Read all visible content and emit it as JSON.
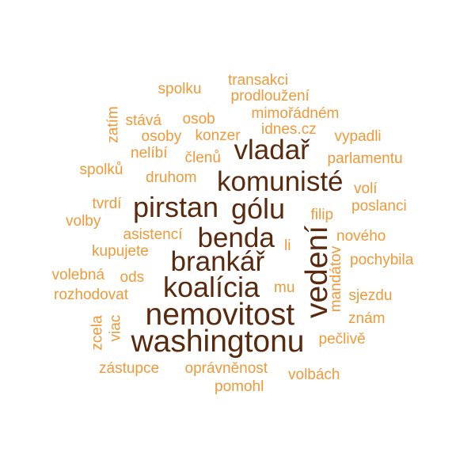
{
  "colors": {
    "primary": "#5a2a0e",
    "accent": "#ef9a3a",
    "background": "#ffffff"
  },
  "words": [
    {
      "text": "washingtonu",
      "tier": "big",
      "size": 39,
      "rotate": 0
    },
    {
      "text": "nemovitost",
      "tier": "big",
      "size": 39,
      "rotate": 0
    },
    {
      "text": "koalícia",
      "tier": "big",
      "size": 36,
      "rotate": 0
    },
    {
      "text": "brankář",
      "tier": "big",
      "size": 35,
      "rotate": 0
    },
    {
      "text": "benda",
      "tier": "big",
      "size": 35,
      "rotate": 0
    },
    {
      "text": "pirstan",
      "tier": "big",
      "size": 36,
      "rotate": 0
    },
    {
      "text": "gólu",
      "tier": "big",
      "size": 36,
      "rotate": 0
    },
    {
      "text": "komunisté",
      "tier": "big",
      "size": 35,
      "rotate": 0
    },
    {
      "text": "vladař",
      "tier": "big",
      "size": 35,
      "rotate": 0
    },
    {
      "text": "vedení",
      "tier": "big",
      "size": 39,
      "rotate": -90
    },
    {
      "text": "spolku",
      "tier": "small",
      "size": 19,
      "rotate": 0
    },
    {
      "text": "transakci",
      "tier": "small",
      "size": 19,
      "rotate": 0
    },
    {
      "text": "prodloužení",
      "tier": "small",
      "size": 19,
      "rotate": 0
    },
    {
      "text": "mimořádném",
      "tier": "small",
      "size": 19,
      "rotate": 0
    },
    {
      "text": "zatím",
      "tier": "small",
      "size": 19,
      "rotate": -90
    },
    {
      "text": "stává",
      "tier": "small",
      "size": 19,
      "rotate": 0
    },
    {
      "text": "osob",
      "tier": "small",
      "size": 19,
      "rotate": 0
    },
    {
      "text": "idnes.cz",
      "tier": "small",
      "size": 19,
      "rotate": 0
    },
    {
      "text": "osoby",
      "tier": "small",
      "size": 19,
      "rotate": 0
    },
    {
      "text": "konzer",
      "tier": "small",
      "size": 19,
      "rotate": 0
    },
    {
      "text": "vypadli",
      "tier": "small",
      "size": 19,
      "rotate": 0
    },
    {
      "text": "nelíbí",
      "tier": "small",
      "size": 19,
      "rotate": 0
    },
    {
      "text": "členů",
      "tier": "small",
      "size": 19,
      "rotate": 0
    },
    {
      "text": "parlamentu",
      "tier": "small",
      "size": 19,
      "rotate": 0
    },
    {
      "text": "spolků",
      "tier": "small",
      "size": 19,
      "rotate": 0
    },
    {
      "text": "druhom",
      "tier": "small",
      "size": 19,
      "rotate": 0
    },
    {
      "text": "volí",
      "tier": "small",
      "size": 19,
      "rotate": 0
    },
    {
      "text": "tvrdí",
      "tier": "small",
      "size": 19,
      "rotate": 0
    },
    {
      "text": "poslanci",
      "tier": "small",
      "size": 19,
      "rotate": 0
    },
    {
      "text": "volby",
      "tier": "small",
      "size": 19,
      "rotate": 0
    },
    {
      "text": "filip",
      "tier": "small",
      "size": 19,
      "rotate": 0
    },
    {
      "text": "asistencí",
      "tier": "small",
      "size": 19,
      "rotate": 0
    },
    {
      "text": "nového",
      "tier": "small",
      "size": 19,
      "rotate": 0
    },
    {
      "text": "kupujete",
      "tier": "small",
      "size": 19,
      "rotate": 0
    },
    {
      "text": "li",
      "tier": "small",
      "size": 19,
      "rotate": 0
    },
    {
      "text": "pochybila",
      "tier": "small",
      "size": 19,
      "rotate": 0
    },
    {
      "text": "volebná",
      "tier": "small",
      "size": 19,
      "rotate": 0
    },
    {
      "text": "ods",
      "tier": "small",
      "size": 19,
      "rotate": 0
    },
    {
      "text": "mandátov",
      "tier": "small",
      "size": 19,
      "rotate": -90
    },
    {
      "text": "rozhodovat",
      "tier": "small",
      "size": 19,
      "rotate": 0
    },
    {
      "text": "mu",
      "tier": "small",
      "size": 19,
      "rotate": 0
    },
    {
      "text": "sjezdu",
      "tier": "small",
      "size": 19,
      "rotate": 0
    },
    {
      "text": "zcela",
      "tier": "small",
      "size": 19,
      "rotate": -90
    },
    {
      "text": "viac",
      "tier": "small",
      "size": 19,
      "rotate": -90
    },
    {
      "text": "znám",
      "tier": "small",
      "size": 19,
      "rotate": 0
    },
    {
      "text": "pečlivě",
      "tier": "small",
      "size": 19,
      "rotate": 0
    },
    {
      "text": "zástupce",
      "tier": "small",
      "size": 19,
      "rotate": 0
    },
    {
      "text": "oprávněnost",
      "tier": "small",
      "size": 19,
      "rotate": 0
    },
    {
      "text": "volbách",
      "tier": "small",
      "size": 19,
      "rotate": 0
    },
    {
      "text": "pomohl",
      "tier": "small",
      "size": 19,
      "rotate": 0
    }
  ]
}
